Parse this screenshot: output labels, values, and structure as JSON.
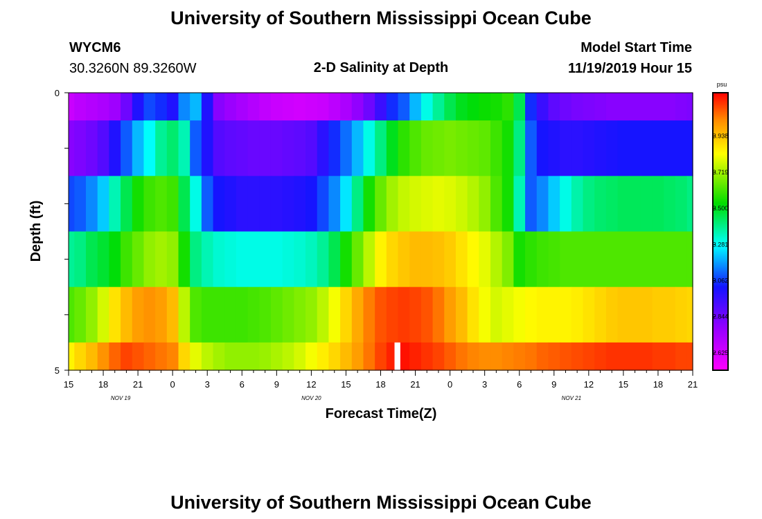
{
  "header": {
    "title": "University of Southern Mississippi Ocean Cube",
    "station_id": "WYCM6",
    "station_coords": "30.3260N 89.3260W",
    "plot_subtitle": "2-D Salinity at Depth",
    "model_start_label": "Model Start Time",
    "model_start_value": "11/19/2019 Hour 15"
  },
  "footer": {
    "title": "University of Southern Mississippi Ocean Cube"
  },
  "chart_data": {
    "type": "heatmap",
    "title": "2-D Salinity at Depth",
    "xlabel": "Forecast Time(Z)",
    "ylabel": "Depth (ft)",
    "y_range": [
      0,
      5
    ],
    "y_ticks": [
      "0",
      "5"
    ],
    "x_range_hours": [
      0,
      54
    ],
    "x_ticks": [
      "15",
      "18",
      "21",
      "0",
      "3",
      "6",
      "9",
      "12",
      "15",
      "18",
      "21",
      "0",
      "3",
      "6",
      "9",
      "12",
      "15",
      "18",
      "21"
    ],
    "date_labels": [
      {
        "text": "NOV 19",
        "hour": 4.5
      },
      {
        "text": "NOV 20",
        "hour": 21
      },
      {
        "text": "NOV 21",
        "hour": 43.5
      }
    ],
    "colorbar": {
      "unit": "psu",
      "range": [
        2.52,
        4.2
      ],
      "ticks": [
        "2.625",
        "2.844",
        "3.062",
        "3.281",
        "3.500",
        "3.719",
        "3.938"
      ],
      "tick_values": [
        2.625,
        2.844,
        3.062,
        3.281,
        3.5,
        3.719,
        3.938
      ]
    },
    "missing_columns_hours": [
      [
        28.2,
        28.7
      ]
    ],
    "columns_hours": [
      0,
      1,
      2,
      3,
      4,
      5,
      6,
      7,
      8,
      9,
      10,
      11,
      12,
      13,
      14,
      15,
      16,
      17,
      18,
      19,
      20,
      21,
      22,
      23,
      24,
      25,
      26,
      27,
      28,
      29,
      30,
      31,
      32,
      33,
      34,
      35,
      36,
      37,
      38,
      39,
      40,
      41,
      42,
      43,
      44,
      45,
      46,
      47,
      48,
      49,
      50,
      51,
      52,
      53,
      54
    ],
    "rows": [
      {
        "depth": [
          0,
          0.5
        ],
        "values": [
          2.65,
          2.68,
          2.7,
          2.72,
          2.75,
          2.85,
          3.0,
          3.08,
          3.05,
          3.0,
          3.15,
          3.2,
          3.0,
          2.8,
          2.76,
          2.73,
          2.7,
          2.67,
          2.65,
          2.64,
          2.63,
          2.64,
          2.65,
          2.68,
          2.72,
          2.78,
          2.85,
          2.95,
          3.05,
          3.1,
          3.2,
          3.3,
          3.38,
          3.45,
          3.5,
          3.52,
          3.54,
          3.55,
          3.58,
          3.45,
          3.05,
          2.95,
          2.88,
          2.85,
          2.83,
          2.82,
          2.81,
          2.8,
          2.8,
          2.8,
          2.8,
          2.8,
          2.8,
          2.81,
          2.82
        ]
      },
      {
        "depth": [
          0.5,
          1.5
        ],
        "values": [
          2.8,
          2.82,
          2.85,
          2.9,
          3.0,
          3.1,
          3.2,
          3.28,
          3.38,
          3.42,
          3.35,
          3.1,
          3.0,
          2.9,
          2.88,
          2.87,
          2.86,
          2.86,
          2.86,
          2.87,
          2.88,
          2.9,
          2.98,
          3.05,
          3.12,
          3.2,
          3.3,
          3.4,
          3.5,
          3.58,
          3.62,
          3.65,
          3.66,
          3.67,
          3.66,
          3.65,
          3.64,
          3.6,
          3.55,
          3.4,
          3.1,
          3.02,
          3.0,
          2.98,
          2.98,
          2.99,
          3.0,
          3.01,
          3.02,
          3.02,
          3.02,
          3.02,
          3.02,
          3.02,
          3.02
        ]
      },
      {
        "depth": [
          1.5,
          2.5
        ],
        "values": [
          3.08,
          3.1,
          3.15,
          3.22,
          3.35,
          3.45,
          3.55,
          3.6,
          3.62,
          3.6,
          3.45,
          3.3,
          3.1,
          3.02,
          3.0,
          2.98,
          2.98,
          2.98,
          2.98,
          2.99,
          3.0,
          3.02,
          3.08,
          3.15,
          3.25,
          3.4,
          3.55,
          3.65,
          3.72,
          3.76,
          3.78,
          3.79,
          3.8,
          3.79,
          3.77,
          3.74,
          3.7,
          3.62,
          3.55,
          3.35,
          3.1,
          3.15,
          3.22,
          3.3,
          3.36,
          3.4,
          3.42,
          3.43,
          3.44,
          3.44,
          3.44,
          3.44,
          3.43,
          3.42,
          3.4
        ]
      },
      {
        "depth": [
          2.5,
          3.5
        ],
        "values": [
          3.38,
          3.4,
          3.45,
          3.48,
          3.52,
          3.6,
          3.65,
          3.7,
          3.72,
          3.7,
          3.55,
          3.4,
          3.35,
          3.32,
          3.31,
          3.3,
          3.3,
          3.3,
          3.3,
          3.31,
          3.32,
          3.34,
          3.38,
          3.45,
          3.55,
          3.65,
          3.75,
          3.85,
          3.9,
          3.93,
          3.95,
          3.95,
          3.94,
          3.92,
          3.88,
          3.84,
          3.8,
          3.74,
          3.68,
          3.55,
          3.58,
          3.6,
          3.61,
          3.62,
          3.62,
          3.62,
          3.62,
          3.62,
          3.62,
          3.62,
          3.62,
          3.62,
          3.62,
          3.62,
          3.62
        ]
      },
      {
        "depth": [
          3.5,
          4.5
        ],
        "values": [
          3.62,
          3.65,
          3.7,
          3.78,
          3.88,
          3.95,
          4.0,
          4.02,
          4.0,
          3.95,
          3.75,
          3.62,
          3.6,
          3.6,
          3.6,
          3.6,
          3.61,
          3.62,
          3.64,
          3.66,
          3.68,
          3.7,
          3.75,
          3.82,
          3.9,
          3.98,
          4.05,
          4.1,
          4.12,
          4.13,
          4.12,
          4.1,
          4.06,
          4.0,
          3.95,
          3.88,
          3.82,
          3.78,
          3.8,
          3.82,
          3.84,
          3.85,
          3.85,
          3.85,
          3.86,
          3.88,
          3.9,
          3.92,
          3.93,
          3.93,
          3.93,
          3.92,
          3.92,
          3.91,
          3.9
        ]
      },
      {
        "depth": [
          4.5,
          5
        ],
        "values": [
          3.85,
          3.9,
          3.95,
          4.02,
          4.08,
          4.12,
          4.1,
          4.08,
          4.06,
          4.04,
          3.9,
          3.8,
          3.75,
          3.72,
          3.7,
          3.7,
          3.7,
          3.71,
          3.73,
          3.75,
          3.78,
          3.82,
          3.86,
          3.9,
          3.95,
          4.0,
          4.06,
          4.12,
          4.16,
          4.18,
          4.16,
          4.14,
          4.12,
          4.09,
          4.06,
          4.04,
          4.03,
          4.03,
          4.04,
          4.05,
          4.06,
          4.08,
          4.09,
          4.1,
          4.11,
          4.12,
          4.13,
          4.14,
          4.14,
          4.14,
          4.14,
          4.13,
          4.13,
          4.12,
          4.12
        ]
      }
    ]
  }
}
